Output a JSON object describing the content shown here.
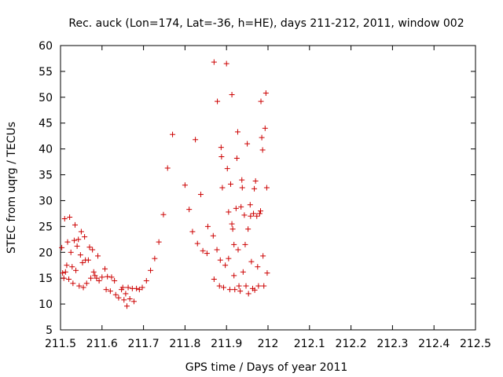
{
  "chart_data": {
    "type": "scatter",
    "title": "Rec. auck (Lon=174, Lat=-36, h=HE), days 211-212, 2011, window 002",
    "xlabel": "GPS time / Days of year 2011",
    "ylabel": "STEC from uqrg / TECUs",
    "xlim": [
      211.5,
      212.5
    ],
    "ylim": [
      5,
      60
    ],
    "xticks": [
      211.5,
      211.6,
      211.7,
      211.8,
      211.9,
      212.0,
      212.1,
      212.2,
      212.3,
      212.4,
      212.5
    ],
    "xtick_labels": [
      "211.5",
      "211.6",
      "211.7",
      "211.8",
      "211.9",
      "212",
      "212.1",
      "212.2",
      "212.3",
      "212.4",
      "212.5"
    ],
    "yticks": [
      5,
      10,
      15,
      20,
      25,
      30,
      35,
      40,
      45,
      50,
      55,
      60
    ],
    "ytick_labels": [
      "5",
      "10",
      "15",
      "20",
      "25",
      "30",
      "35",
      "40",
      "45",
      "50",
      "55",
      "60"
    ],
    "grid": false,
    "legend": "none",
    "marker": "plus",
    "color": "#cc0000",
    "points": [
      [
        211.503,
        20.9
      ],
      [
        211.505,
        16.0
      ],
      [
        211.508,
        15.0
      ],
      [
        211.51,
        26.5
      ],
      [
        211.512,
        16.2
      ],
      [
        211.515,
        17.5
      ],
      [
        211.517,
        22.0
      ],
      [
        211.52,
        14.8
      ],
      [
        211.522,
        26.8
      ],
      [
        211.525,
        20.0
      ],
      [
        211.528,
        17.2
      ],
      [
        211.53,
        14.0
      ],
      [
        211.533,
        22.3
      ],
      [
        211.535,
        25.3
      ],
      [
        211.537,
        16.5
      ],
      [
        211.54,
        21.2
      ],
      [
        211.543,
        22.5
      ],
      [
        211.545,
        13.5
      ],
      [
        211.548,
        19.5
      ],
      [
        211.55,
        24.0
      ],
      [
        211.553,
        18.0
      ],
      [
        211.555,
        13.2
      ],
      [
        211.558,
        23.0
      ],
      [
        211.56,
        18.5
      ],
      [
        211.563,
        14.0
      ],
      [
        211.567,
        18.5
      ],
      [
        211.57,
        21.0
      ],
      [
        211.573,
        15.0
      ],
      [
        211.577,
        20.5
      ],
      [
        211.58,
        16.2
      ],
      [
        211.583,
        15.5
      ],
      [
        211.587,
        15.0
      ],
      [
        211.59,
        19.3
      ],
      [
        211.593,
        14.5
      ],
      [
        211.6,
        15.2
      ],
      [
        211.607,
        16.8
      ],
      [
        211.61,
        12.8
      ],
      [
        211.613,
        15.3
      ],
      [
        211.62,
        12.5
      ],
      [
        211.623,
        15.2
      ],
      [
        211.63,
        14.5
      ],
      [
        211.633,
        11.8
      ],
      [
        211.64,
        11.2
      ],
      [
        211.647,
        12.8
      ],
      [
        211.65,
        13.2
      ],
      [
        211.653,
        10.8
      ],
      [
        211.657,
        12.0
      ],
      [
        211.66,
        9.6
      ],
      [
        211.663,
        13.2
      ],
      [
        211.667,
        11.0
      ],
      [
        211.673,
        13.0
      ],
      [
        211.677,
        10.5
      ],
      [
        211.683,
        13.0
      ],
      [
        211.69,
        12.8
      ],
      [
        211.697,
        13.2
      ],
      [
        211.707,
        14.5
      ],
      [
        211.717,
        16.5
      ],
      [
        211.727,
        18.8
      ],
      [
        211.737,
        22.0
      ],
      [
        211.748,
        27.3
      ],
      [
        211.758,
        36.3
      ],
      [
        211.77,
        42.8
      ],
      [
        211.8,
        33.0
      ],
      [
        211.81,
        28.3
      ],
      [
        211.818,
        24.0
      ],
      [
        211.825,
        41.8
      ],
      [
        211.83,
        21.7
      ],
      [
        211.838,
        31.2
      ],
      [
        211.843,
        20.3
      ],
      [
        211.853,
        19.8
      ],
      [
        211.855,
        25.0
      ],
      [
        211.87,
        56.8
      ],
      [
        211.868,
        23.2
      ],
      [
        211.87,
        14.8
      ],
      [
        211.878,
        49.2
      ],
      [
        211.877,
        20.5
      ],
      [
        211.883,
        13.5
      ],
      [
        211.885,
        18.5
      ],
      [
        211.887,
        40.3
      ],
      [
        211.888,
        38.5
      ],
      [
        211.89,
        32.5
      ],
      [
        211.893,
        13.2
      ],
      [
        211.897,
        17.5
      ],
      [
        211.9,
        56.5
      ],
      [
        211.902,
        36.2
      ],
      [
        211.905,
        27.8
      ],
      [
        211.905,
        18.8
      ],
      [
        211.908,
        12.8
      ],
      [
        211.91,
        33.2
      ],
      [
        211.913,
        50.5
      ],
      [
        211.913,
        25.5
      ],
      [
        211.915,
        24.5
      ],
      [
        211.918,
        21.5
      ],
      [
        211.918,
        15.5
      ],
      [
        211.92,
        12.8
      ],
      [
        211.923,
        28.5
      ],
      [
        211.925,
        38.2
      ],
      [
        211.927,
        43.3
      ],
      [
        211.928,
        20.5
      ],
      [
        211.93,
        13.5
      ],
      [
        211.933,
        12.5
      ],
      [
        211.935,
        28.8
      ],
      [
        211.937,
        34.0
      ],
      [
        211.938,
        32.5
      ],
      [
        211.94,
        16.2
      ],
      [
        211.943,
        27.2
      ],
      [
        211.945,
        21.5
      ],
      [
        211.947,
        13.5
      ],
      [
        211.95,
        41.0
      ],
      [
        211.952,
        24.5
      ],
      [
        211.953,
        12.0
      ],
      [
        211.957,
        29.2
      ],
      [
        211.958,
        27.0
      ],
      [
        211.96,
        18.2
      ],
      [
        211.963,
        13.0
      ],
      [
        211.965,
        27.5
      ],
      [
        211.967,
        32.3
      ],
      [
        211.968,
        12.7
      ],
      [
        211.97,
        33.8
      ],
      [
        211.973,
        27.0
      ],
      [
        211.975,
        17.2
      ],
      [
        211.977,
        13.5
      ],
      [
        211.98,
        27.5
      ],
      [
        211.982,
        28.0
      ],
      [
        211.983,
        49.2
      ],
      [
        211.985,
        42.2
      ],
      [
        211.987,
        39.8
      ],
      [
        211.988,
        19.3
      ],
      [
        211.99,
        13.5
      ],
      [
        211.993,
        44.0
      ],
      [
        211.995,
        50.8
      ],
      [
        211.997,
        32.5
      ],
      [
        211.998,
        16.0
      ]
    ]
  }
}
